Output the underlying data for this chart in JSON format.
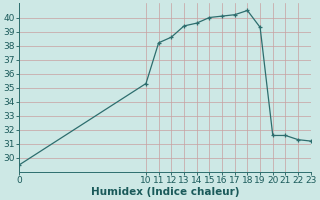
{
  "x": [
    0,
    10,
    11,
    12,
    13,
    14,
    15,
    16,
    17,
    18,
    19,
    20,
    21,
    22,
    23
  ],
  "y": [
    29.5,
    35.3,
    38.2,
    38.6,
    39.4,
    39.6,
    40.0,
    40.1,
    40.2,
    40.5,
    39.3,
    31.6,
    31.6,
    31.3,
    31.2
  ],
  "line_color": "#2d6e6e",
  "marker": "+",
  "bg_color": "#cde8e5",
  "grid_color_h": "#c8a0a0",
  "grid_color_v": "#c8a0a0",
  "xlabel": "Humidex (Indice chaleur)",
  "xlim": [
    0,
    23
  ],
  "ylim": [
    29.0,
    41.0
  ],
  "yticks": [
    30,
    31,
    32,
    33,
    34,
    35,
    36,
    37,
    38,
    39,
    40
  ],
  "xticks": [
    0,
    10,
    11,
    12,
    13,
    14,
    15,
    16,
    17,
    18,
    19,
    20,
    21,
    22,
    23
  ],
  "xlabel_fontsize": 7.5,
  "tick_fontsize": 6.5,
  "xlabel_color": "#1a5a5a",
  "tick_color": "#1a5a5a",
  "axis_color": "#2d6e6e",
  "line_width": 0.9,
  "marker_size": 3.5,
  "marker_edge_width": 0.9
}
